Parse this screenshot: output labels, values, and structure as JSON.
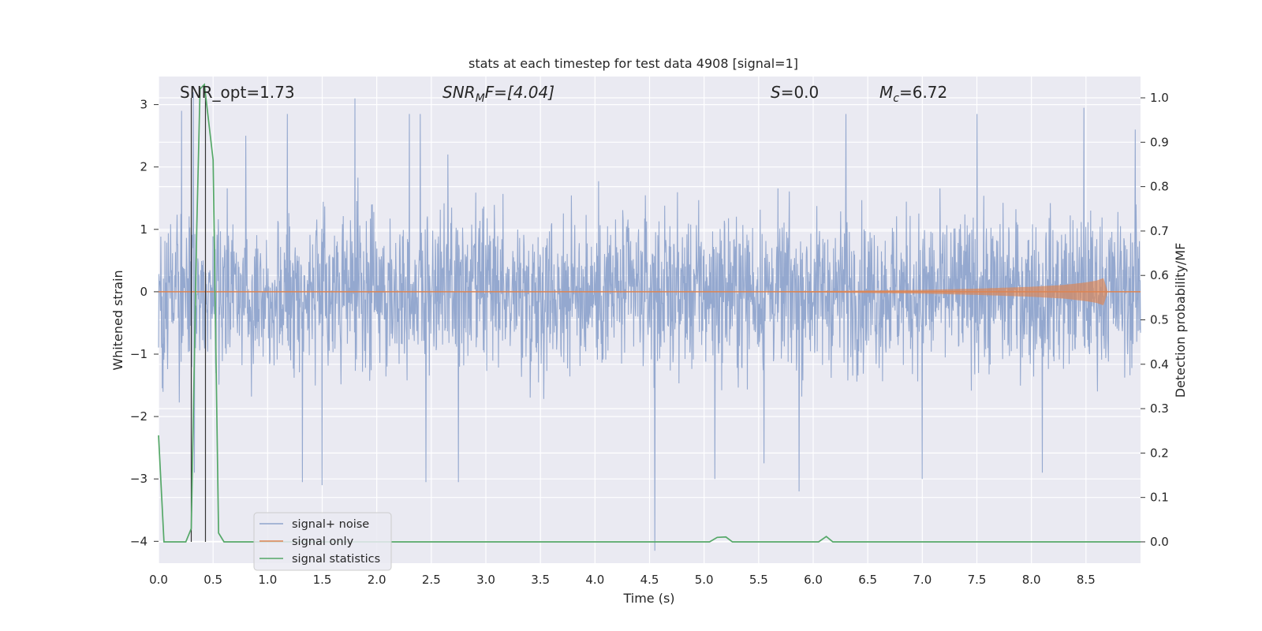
{
  "chart_data": {
    "type": "line",
    "title": "stats at each timestep for test data 4908 [signal=1]",
    "xlabel": "Time (s)",
    "ylabel": "Whitened strain",
    "y2label": "Detection probability/MF",
    "xlim": [
      0.0,
      9.0
    ],
    "ylim": [
      -4.35,
      3.45
    ],
    "y2lim": [
      -0.048,
      1.048
    ],
    "xticks": [
      0.0,
      0.5,
      1.0,
      1.5,
      2.0,
      2.5,
      3.0,
      3.5,
      4.0,
      4.5,
      5.0,
      5.5,
      6.0,
      6.5,
      7.0,
      7.5,
      8.0,
      8.5
    ],
    "xtick_labels": [
      "0.0",
      "0.5",
      "1.0",
      "1.5",
      "2.0",
      "2.5",
      "3.0",
      "3.5",
      "4.0",
      "4.5",
      "5.0",
      "5.5",
      "6.0",
      "6.5",
      "7.0",
      "7.5",
      "8.0",
      "8.5"
    ],
    "yticks": [
      3,
      2,
      1,
      0,
      -1,
      -2,
      -3,
      -4
    ],
    "ytick_labels": [
      "3",
      "2",
      "1",
      "0",
      "−1",
      "−2",
      "−3",
      "−4"
    ],
    "y2ticks": [
      1.0,
      0.9,
      0.8,
      0.7,
      0.6,
      0.5,
      0.4,
      0.3,
      0.2,
      0.1,
      0.0
    ],
    "y2tick_labels": [
      "1.0",
      "0.9",
      "0.8",
      "0.7",
      "0.6",
      "0.5",
      "0.4",
      "0.3",
      "0.2",
      "0.1",
      "0.0"
    ],
    "annotations": {
      "snr_opt": "SNR_opt=1.73",
      "snr_mf_prefix": "SNR",
      "snr_mf_sub": "M",
      "snr_mf_suffix": "F=[4.04]",
      "s_var": "S",
      "s_value": "=0.0",
      "mc_var": "M",
      "mc_sub": "c",
      "mc_value": "=6.72"
    },
    "legend": {
      "placement": "lower-left",
      "entries": [
        "signal+ noise",
        "signal only",
        "signal statistics"
      ]
    },
    "series": [
      {
        "name": "signal+ noise",
        "color": "#8fa4cc",
        "description": "dense whitened noise, roughly within ±2 with spikes to ~±3",
        "spikes": [
          {
            "x": 0.21,
            "y": 2.9
          },
          {
            "x": 0.32,
            "y": 3.2
          },
          {
            "x": 0.33,
            "y": -2.9
          },
          {
            "x": 0.8,
            "y": 2.5
          },
          {
            "x": 1.18,
            "y": 2.85
          },
          {
            "x": 1.32,
            "y": -3.05
          },
          {
            "x": 1.5,
            "y": -3.1
          },
          {
            "x": 1.8,
            "y": 3.1
          },
          {
            "x": 2.3,
            "y": 2.85
          },
          {
            "x": 2.4,
            "y": 2.85
          },
          {
            "x": 2.45,
            "y": -3.05
          },
          {
            "x": 2.75,
            "y": -3.05
          },
          {
            "x": 2.65,
            "y": 2.2
          },
          {
            "x": 4.55,
            "y": -4.15
          },
          {
            "x": 5.1,
            "y": -3.0
          },
          {
            "x": 5.55,
            "y": -2.75
          },
          {
            "x": 5.87,
            "y": -3.2
          },
          {
            "x": 6.3,
            "y": 2.85
          },
          {
            "x": 7.0,
            "y": -3.0
          },
          {
            "x": 7.5,
            "y": 2.85
          },
          {
            "x": 8.1,
            "y": -2.9
          },
          {
            "x": 8.48,
            "y": 2.95
          },
          {
            "x": 8.95,
            "y": 2.6
          }
        ]
      },
      {
        "name": "signal only",
        "color": "#dd8452",
        "description": "chirp near zero, amplitude growing toward merger at ~8.65 s",
        "x": [
          0.0,
          5.0,
          6.0,
          7.0,
          7.5,
          8.0,
          8.3,
          8.5,
          8.6,
          8.66,
          8.7,
          9.0
        ],
        "amplitude": [
          0.0,
          0.0,
          0.01,
          0.03,
          0.05,
          0.08,
          0.11,
          0.15,
          0.18,
          0.22,
          0.0,
          0.0
        ]
      },
      {
        "name": "signal statistics",
        "color": "#55a868",
        "axis": "right",
        "x": [
          0.0,
          0.05,
          0.25,
          0.3,
          0.35,
          0.38,
          0.42,
          0.5,
          0.55,
          0.6,
          0.65,
          5.05,
          5.12,
          5.2,
          5.26,
          6.05,
          6.12,
          6.18,
          9.0
        ],
        "y": [
          0.24,
          0.0,
          0.0,
          0.03,
          0.7,
          1.02,
          1.03,
          0.86,
          0.02,
          0.0,
          0.0,
          0.0,
          0.01,
          0.011,
          0.0,
          0.0,
          0.012,
          0.0,
          0.0
        ]
      }
    ],
    "vertical_markers": {
      "color": "#333333",
      "x": [
        0.3,
        0.43
      ]
    }
  }
}
